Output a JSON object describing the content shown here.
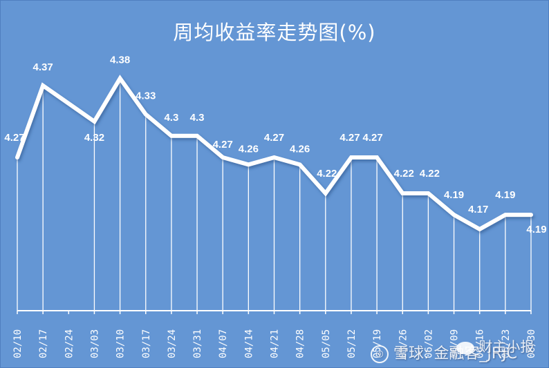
{
  "chart_data": {
    "type": "line",
    "title": "周均收益率走势图(%)",
    "xlabel": "",
    "ylabel": "",
    "categories": [
      "02/10",
      "02/17",
      "02/24",
      "03/03",
      "03/10",
      "03/17",
      "03/24",
      "03/31",
      "04/07",
      "04/14",
      "04/21",
      "04/28",
      "05/05",
      "05/12",
      "05/19",
      "05/26",
      "06/02",
      "06/09",
      "06/16",
      "06/23",
      "06/30"
    ],
    "series": [
      {
        "name": "周均收益率",
        "values": [
          4.27,
          4.37,
          null,
          4.32,
          4.38,
          4.33,
          4.3,
          4.3,
          4.27,
          4.26,
          4.27,
          4.26,
          4.22,
          4.27,
          4.27,
          4.22,
          4.22,
          4.19,
          4.17,
          4.19,
          4.19
        ]
      }
    ],
    "data_labels": [
      "4.27",
      "4.37",
      "",
      "4.32",
      "4.38",
      "4.33",
      "4.3",
      "4.3",
      "4.27",
      "4.26",
      "4.27",
      "4.26",
      "4.22",
      "4.27",
      "4.27",
      "4.22",
      "4.22",
      "4.19",
      "4.17",
      "4.19",
      "4.19"
    ],
    "ylim": [
      4.06,
      4.4
    ],
    "grid": false,
    "drop_lines": true,
    "legend": "none",
    "colors": {
      "background": "#6496d4",
      "line": "#ffffff",
      "text": "#ffffff"
    }
  },
  "watermark": {
    "left_logo": "雪球",
    "left_text": "雪球: 金融客_JRJC",
    "right_text": "财主小报"
  }
}
